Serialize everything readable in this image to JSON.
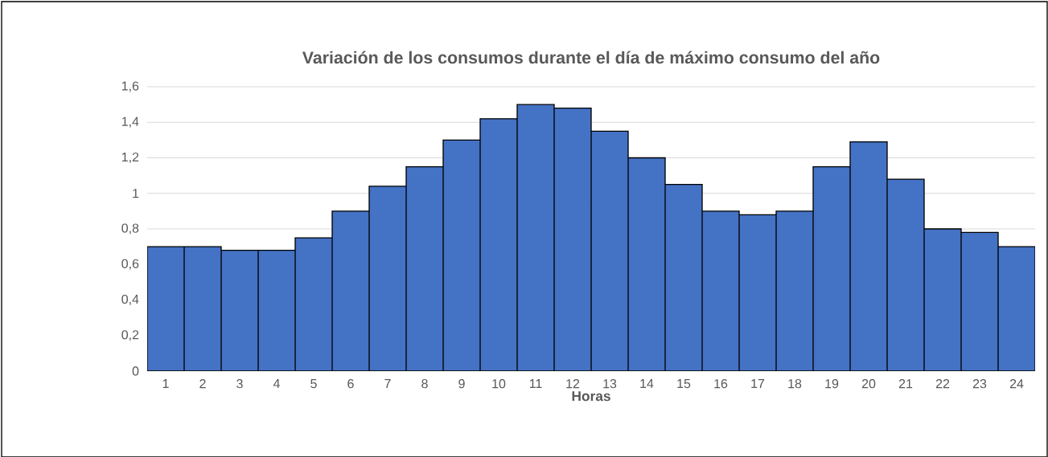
{
  "chart_data": {
    "type": "bar",
    "title": "Variación de los consumos durante el día de máximo consumo del año",
    "xlabel": "Horas",
    "categories": [
      "1",
      "2",
      "3",
      "4",
      "5",
      "6",
      "7",
      "8",
      "9",
      "10",
      "11",
      "12",
      "13",
      "14",
      "15",
      "16",
      "17",
      "18",
      "19",
      "20",
      "21",
      "22",
      "23",
      "24"
    ],
    "values": [
      0.7,
      0.7,
      0.68,
      0.68,
      0.75,
      0.9,
      1.04,
      1.15,
      1.3,
      1.42,
      1.5,
      1.48,
      1.35,
      1.2,
      1.05,
      0.9,
      0.88,
      0.9,
      1.15,
      1.29,
      1.08,
      0.8,
      0.78,
      0.7
    ],
    "color": "#4472c4",
    "ylim": [
      0,
      1.6
    ],
    "yticks": [
      0,
      {
        "value": 0.2,
        "label": "0,2"
      },
      {
        "value": 0.4,
        "label": "0,4"
      },
      {
        "value": 0.6,
        "label": "0,6"
      },
      {
        "value": 0.8,
        "label": "0,8"
      },
      1,
      {
        "value": 1.2,
        "label": "1,2"
      },
      {
        "value": 1.4,
        "label": "1,4"
      },
      {
        "value": 1.6,
        "label": "1,6"
      }
    ],
    "grid": "y"
  }
}
